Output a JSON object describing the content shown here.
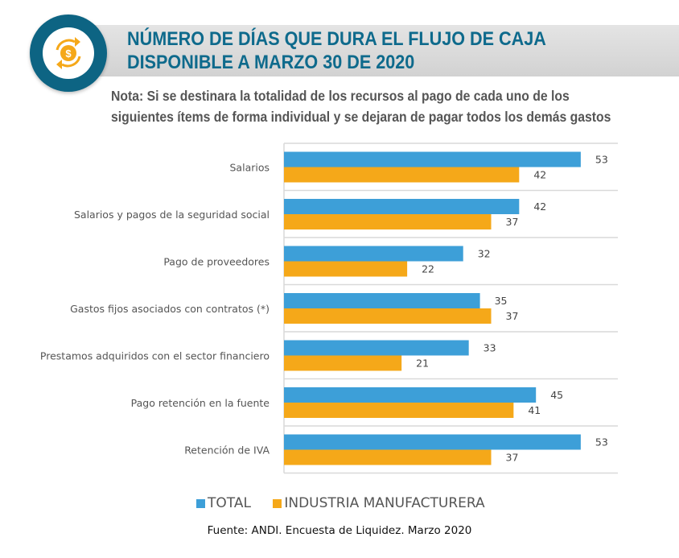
{
  "header": {
    "title_line1": "NÚMERO DE DÍAS QUE DURA EL FLUJO DE CAJA",
    "title_line2": "DISPONIBLE A MARZO 30 DE 2020",
    "icon": "cash-flow-dollar-icon",
    "note_line1": "Nota: Si se destinara la totalidad de los recursos al pago de cada uno de los",
    "note_line2": "siguientes ítems de forma individual y se dejaran de pagar todos los demás gastos"
  },
  "colors": {
    "total": "#3d9fd8",
    "industria": "#f5a819",
    "title": "#0e6a8c",
    "badge": "#0d6483"
  },
  "chart_data": {
    "type": "bar",
    "orientation": "horizontal",
    "categories": [
      "Salarios",
      "Salarios y pagos de la seguridad social",
      "Pago de proveedores",
      "Gastos fijos asociados con contratos (*)",
      "Prestamos adquiridos con el sector financiero",
      "Pago retención en la fuente",
      "Retención de IVA"
    ],
    "series": [
      {
        "name": "TOTAL",
        "values": [
          53,
          42,
          32,
          35,
          33,
          45,
          53
        ]
      },
      {
        "name": "INDUSTRIA MANUFACTURERA",
        "values": [
          42,
          37,
          22,
          37,
          21,
          41,
          37
        ]
      }
    ],
    "xlim": [
      0,
      60
    ],
    "grid": true,
    "data_labels": true,
    "legend_position": "bottom"
  },
  "footer": {
    "source": "Fuente: ANDI. Encuesta de Liquidez. Marzo 2020"
  }
}
